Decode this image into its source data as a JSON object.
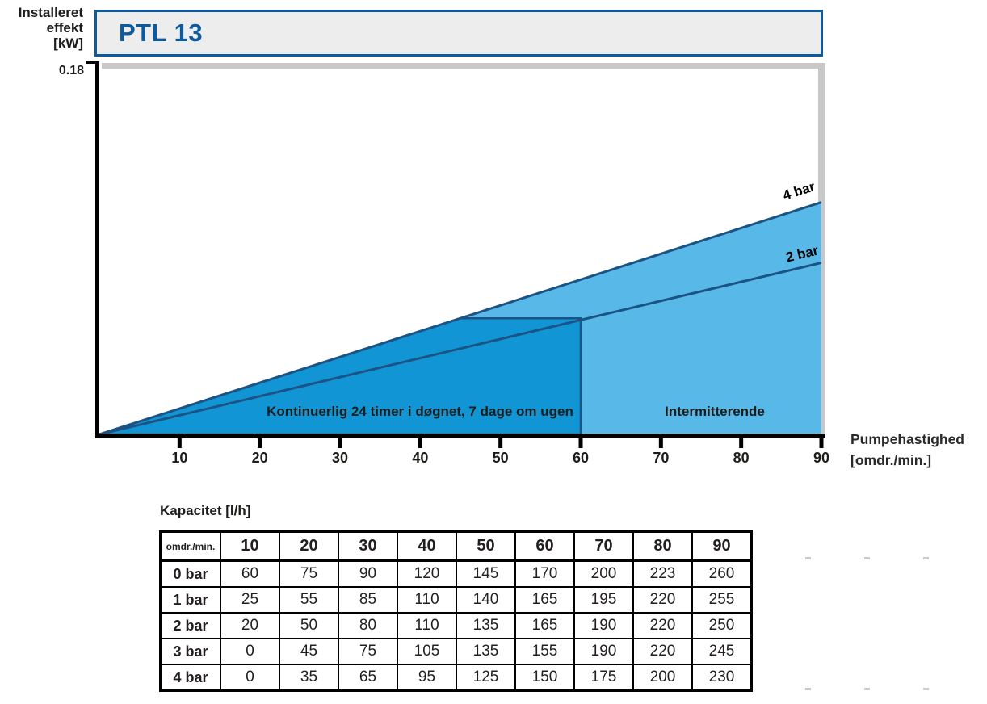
{
  "header": {
    "product_name": "PTL 13"
  },
  "y_axis": {
    "title_line1": "Installeret",
    "title_line2": "effekt",
    "title_line3": "[kW]",
    "max_label": "0.18"
  },
  "x_axis": {
    "title_line1": "Pumpehastighed",
    "title_line2": "[omdr./min.]"
  },
  "chart_data": {
    "type": "area",
    "title": "PTL 13",
    "xlabel": "Pumpehastighed [omdr./min.]",
    "ylabel": "Installeret effekt [kW]",
    "xlim": [
      0,
      90
    ],
    "ylim": [
      0,
      0.18
    ],
    "x_ticks": [
      10,
      20,
      30,
      40,
      50,
      60,
      70,
      80,
      90
    ],
    "y_tick_labels": [
      "0.18"
    ],
    "grid": false,
    "series": [
      {
        "name": "4 bar",
        "x": [
          0,
          90
        ],
        "y": [
          0,
          0.115
        ]
      },
      {
        "name": "2 bar",
        "x": [
          0,
          90
        ],
        "y": [
          0,
          0.085
        ]
      }
    ],
    "regions": [
      {
        "name": "continuous",
        "label": "Kontinuerlig 24 timer i døgnet, 7 dage om ugen",
        "x": [
          0,
          45,
          60,
          60
        ],
        "y": [
          0,
          0.0575,
          0.0575,
          0
        ],
        "fill": "#1295d4"
      },
      {
        "name": "intermittent",
        "label": "Intermitterende",
        "x": [
          0,
          90,
          90
        ],
        "y": [
          0,
          0.115,
          0
        ],
        "fill": "#58b9e8"
      }
    ],
    "line_color": "#1b5385"
  },
  "capacity_table": {
    "title": "Kapacitet [l/h]",
    "corner_header": "omdr./min.",
    "col_headers": [
      "10",
      "20",
      "30",
      "40",
      "50",
      "60",
      "70",
      "80",
      "90"
    ],
    "rows": [
      {
        "label": "0 bar",
        "values": [
          "60",
          "75",
          "90",
          "120",
          "145",
          "170",
          "200",
          "223",
          "260"
        ]
      },
      {
        "label": "1 bar",
        "values": [
          "25",
          "55",
          "85",
          "110",
          "140",
          "165",
          "195",
          "220",
          "255"
        ]
      },
      {
        "label": "2 bar",
        "values": [
          "20",
          "50",
          "80",
          "110",
          "135",
          "165",
          "190",
          "220",
          "250"
        ]
      },
      {
        "label": "3 bar",
        "values": [
          "0",
          "45",
          "75",
          "105",
          "135",
          "155",
          "190",
          "220",
          "245"
        ]
      },
      {
        "label": "4 bar",
        "values": [
          "0",
          "35",
          "65",
          "95",
          "125",
          "150",
          "175",
          "200",
          "230"
        ]
      }
    ]
  },
  "colors": {
    "accent_blue": "#0d5a9e",
    "fill_dark": "#1295d4",
    "fill_light": "#58b9e8",
    "line": "#1b5385",
    "title_box_bg": "#ededed",
    "gray_bar": "#c8c8c8",
    "axis_black": "#000000",
    "text": "#231f20"
  }
}
